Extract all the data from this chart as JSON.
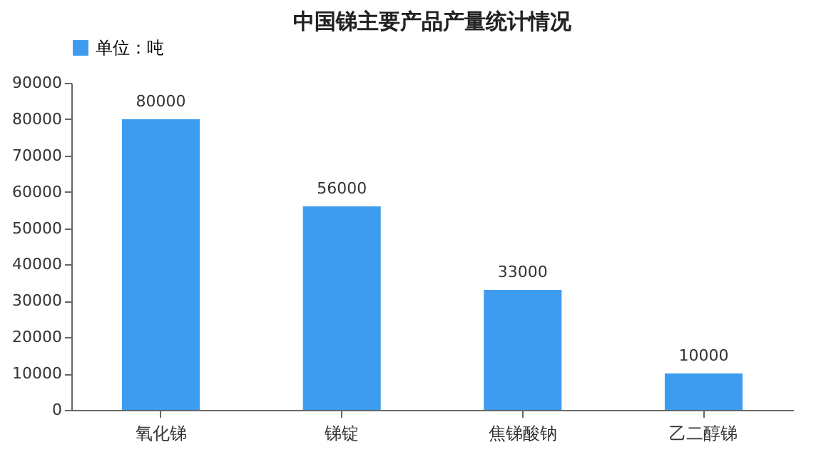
{
  "chart_data": {
    "type": "bar",
    "title": "中国锑主要产品产量统计情况",
    "categories": [
      "氧化锑",
      "锑锭",
      "焦锑酸钠",
      "乙二醇锑"
    ],
    "series": [
      {
        "name": "单位：吨",
        "color": "#3d9cf0",
        "values": [
          80000,
          56000,
          33000,
          10000
        ]
      }
    ],
    "ylim": [
      0,
      90000
    ],
    "yticks": [
      0,
      10000,
      20000,
      30000,
      40000,
      50000,
      60000,
      70000,
      80000,
      90000
    ],
    "grid": false,
    "legend": "top",
    "data_labels": true
  }
}
